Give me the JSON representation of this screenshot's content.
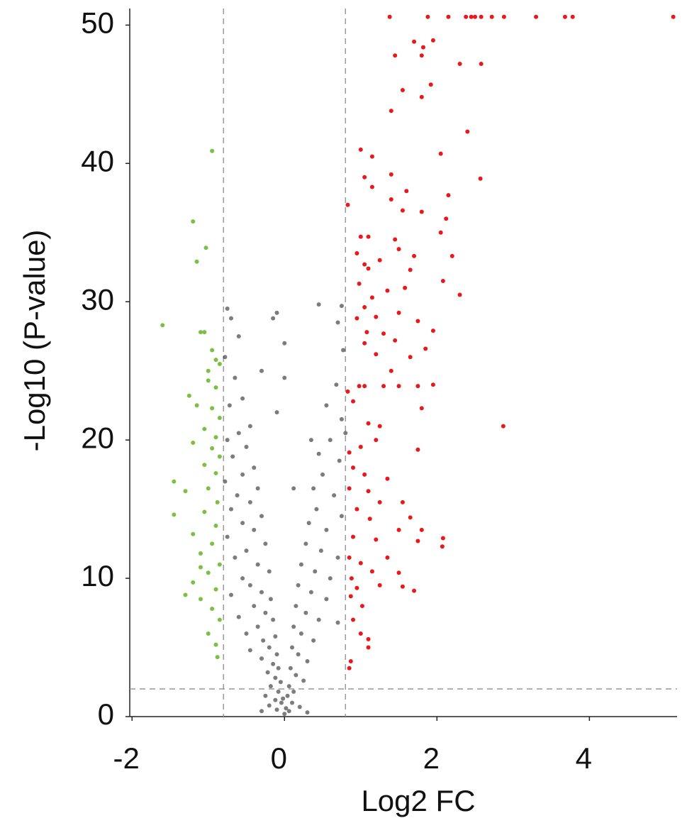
{
  "chart_data": {
    "type": "scatter",
    "x_label": "Log2 FC",
    "y_label": "-Log10 (P-value)",
    "xlim": [
      -2.03,
      5.15
    ],
    "ylim": [
      0,
      51.2
    ],
    "xticks": [
      -2,
      0,
      2,
      4
    ],
    "yticks": [
      0,
      10,
      20,
      30,
      40,
      50
    ],
    "thresholds": {
      "x": [
        -0.8,
        0.8
      ],
      "y": 2
    },
    "series": [
      {
        "color": "#e8191c",
        "x": [
          1.38,
          1.88,
          2.15,
          2.38,
          2.45,
          2.5,
          2.58,
          2.72,
          2.88,
          3.3,
          3.68,
          3.78,
          5.1,
          1.7,
          1.82,
          1.95,
          1.8,
          1.45,
          2.3,
          2.58,
          1.92,
          1.55,
          1.8,
          1.4,
          2.4,
          1.0,
          1.15,
          2.05,
          1.05,
          1.4,
          2.57,
          1.15,
          1.6,
          2.15,
          0.83,
          1.4,
          1.8,
          1.55,
          2.12,
          1.0,
          1.1,
          1.45,
          2.05,
          0.95,
          1.25,
          1.5,
          1.7,
          2.2,
          1.05,
          1.1,
          1.65,
          0.98,
          1.35,
          1.58,
          2.08,
          2.3,
          1.15,
          1.05,
          1.5,
          1.75,
          0.95,
          1.2,
          1.08,
          1.3,
          1.95,
          1.45,
          1.85,
          1.05,
          1.2,
          1.65,
          1.4,
          1.75,
          0.98,
          1.05,
          1.3,
          1.5,
          1.95,
          0.83,
          0.9,
          1.8,
          1.1,
          1.25,
          2.87,
          0.85,
          1.0,
          1.2,
          1.75,
          0.9,
          1.05,
          1.35,
          1.1,
          0.85,
          1.25,
          0.95,
          1.55,
          1.12,
          1.5,
          1.65,
          1.8,
          0.9,
          1.2,
          1.75,
          2.07,
          2.08,
          0.85,
          1.0,
          1.35,
          0.88,
          1.15,
          1.5,
          0.95,
          1.25,
          1.55,
          1.7,
          0.87,
          1.02,
          0.9,
          1.0,
          1.1,
          1.1,
          0.87,
          0.85
        ],
        "values": [
          50.6,
          50.6,
          50.6,
          50.6,
          50.6,
          50.6,
          50.6,
          50.6,
          50.6,
          50.6,
          50.6,
          50.6,
          50.6,
          48.8,
          48.4,
          48.9,
          47.8,
          47.8,
          47.2,
          47.2,
          45.7,
          45.3,
          44.8,
          43.8,
          42.3,
          41,
          40.5,
          40.7,
          39,
          39.2,
          38.9,
          38.3,
          38,
          37.7,
          37,
          37.4,
          36.5,
          36.6,
          36,
          34.7,
          34.7,
          34.5,
          35,
          33.5,
          33,
          33.8,
          33.3,
          33.3,
          32.7,
          32.4,
          32.3,
          31.3,
          30.8,
          31,
          31.5,
          30.5,
          30.3,
          29.6,
          29.2,
          28.6,
          28.8,
          28.9,
          27.8,
          27.7,
          27.9,
          27.2,
          26.6,
          27,
          26.2,
          26,
          25,
          23.9,
          23.9,
          23.9,
          23.9,
          23.9,
          24,
          23.5,
          22.8,
          22.3,
          21.2,
          21,
          21,
          19.1,
          19.5,
          20,
          19.3,
          18,
          17.5,
          17.2,
          16.3,
          16.5,
          15.5,
          15,
          15.5,
          14.3,
          13.5,
          14.4,
          13.5,
          13,
          12.8,
          12.7,
          12.3,
          12.9,
          11.5,
          11.1,
          11.5,
          10,
          10.5,
          10.4,
          9.3,
          9.5,
          9.4,
          9.1,
          8.7,
          8,
          7,
          6,
          5.6,
          5,
          4,
          3.5
        ]
      },
      {
        "color": "#7bc043",
        "x": [
          -0.95,
          -1.2,
          -1.03,
          -1.15,
          -1.6,
          -1.1,
          -1.05,
          -0.95,
          -0.9,
          -1.0,
          -0.85,
          -1.0,
          -0.9,
          -1.25,
          -1.15,
          -0.95,
          -0.85,
          -1.05,
          -0.9,
          -1.2,
          -0.95,
          -0.85,
          -1.05,
          -0.9,
          -1.45,
          -1.3,
          -1.0,
          -0.88,
          -1.05,
          -1.45,
          -0.9,
          -1.2,
          -0.95,
          -1.1,
          -0.85,
          -1.0,
          -1.2,
          -0.9,
          -1.1,
          -0.95,
          -0.85,
          -1.0,
          -0.9,
          -0.88,
          -1.1,
          -1.3
        ],
        "values": [
          40.9,
          35.8,
          33.9,
          32.9,
          28.3,
          27.8,
          27.8,
          26.5,
          25.8,
          25,
          25.5,
          24.3,
          23.8,
          23.2,
          22.5,
          22.3,
          21.6,
          20.8,
          20.2,
          19.8,
          19.4,
          18.8,
          18.2,
          17.6,
          17,
          16.3,
          16.5,
          15.5,
          14.8,
          14.6,
          13.8,
          13.2,
          12.5,
          11.8,
          11,
          10.4,
          9.7,
          9.2,
          8.5,
          7.8,
          7,
          6,
          5.2,
          4.3,
          10.8,
          8.8
        ]
      },
      {
        "color": "#111111",
        "x": [
          -0.75,
          -0.7,
          -0.6,
          -0.78,
          -0.65,
          -0.55,
          -0.72,
          -0.45,
          -0.6,
          -0.75,
          -0.5,
          -0.68,
          -0.4,
          -0.55,
          -0.78,
          -0.35,
          -0.62,
          -0.45,
          -0.7,
          -0.3,
          -0.55,
          -0.4,
          -0.75,
          -0.25,
          -0.5,
          -0.65,
          -0.35,
          -0.2,
          -0.55,
          -0.45,
          -0.3,
          -0.7,
          -0.18,
          -0.4,
          -0.25,
          -0.6,
          -0.15,
          -0.35,
          -0.5,
          -0.12,
          -0.28,
          -0.2,
          -0.45,
          -0.1,
          -0.3,
          -0.15,
          -0.08,
          -0.22,
          -0.12,
          -0.05,
          -0.18,
          -0.08,
          -0.25,
          -0.12,
          -0.04,
          -0.2,
          -0.1,
          -0.3,
          -0.1,
          -0.15,
          -0.3,
          0,
          -0.1,
          0,
          0,
          0.02,
          -0.02,
          0.75,
          0.7,
          0.77,
          0.68,
          0.55,
          0.75,
          0.6,
          0.45,
          0.72,
          0.5,
          0.38,
          0.65,
          0.42,
          0.75,
          0.32,
          0.55,
          0.28,
          0.48,
          0.7,
          0.22,
          0.4,
          0.6,
          0.18,
          0.35,
          0.55,
          0.15,
          0.28,
          0.45,
          0.7,
          0.12,
          0.22,
          0.38,
          0.1,
          0.18,
          0.3,
          0.08,
          0.15,
          0.25,
          0.06,
          0.12,
          0.04,
          0.1,
          0.2,
          0.06,
          0.3,
          0.8,
          0.45,
          0.35,
          0.12
        ],
        "values": [
          29.5,
          28.8,
          27.5,
          26,
          24.5,
          23,
          22.5,
          21,
          20.5,
          20,
          19.5,
          18.8,
          18,
          17.5,
          17,
          16.5,
          16,
          15.5,
          15,
          14.5,
          14,
          13.5,
          13,
          12.5,
          12,
          11.5,
          11,
          10.5,
          10,
          9.5,
          9,
          8.8,
          8.5,
          8,
          7.5,
          7.2,
          7,
          6.5,
          6,
          5.8,
          5.5,
          5,
          4.8,
          4.5,
          4.2,
          3.8,
          3.5,
          3.2,
          2.8,
          2.5,
          2.2,
          1.8,
          1.5,
          1.2,
          1,
          0.8,
          0.5,
          0.4,
          29.2,
          28.8,
          25,
          27,
          22,
          24.5,
          0.2,
          0.6,
          1.3,
          29.7,
          28.5,
          26.5,
          24,
          22.5,
          21.5,
          20,
          19,
          18.5,
          17.5,
          16.5,
          16,
          15,
          14.5,
          14,
          13.5,
          12.5,
          12,
          11.5,
          11,
          10.5,
          10,
          9.5,
          9,
          8.5,
          8,
          7.5,
          7,
          6.8,
          6.5,
          6,
          5.5,
          5,
          4.5,
          4,
          3.5,
          3,
          2.6,
          2.2,
          1.8,
          1.5,
          1,
          0.7,
          0.4,
          0.3,
          20.5,
          29.8,
          20,
          16.5
        ]
      }
    ]
  }
}
